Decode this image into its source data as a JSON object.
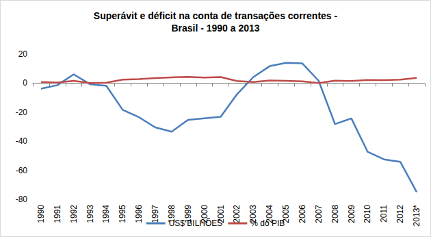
{
  "chart_data": {
    "type": "line",
    "title": "Superávit e déficit na conta de transações correntes -\nBrasil - 1990 a 2013",
    "categories": [
      "1990",
      "1991",
      "1992",
      "1993",
      "1994",
      "1995",
      "1996",
      "1997",
      "1998",
      "1999",
      "2000",
      "2001",
      "2002",
      "2003",
      "2004",
      "2005",
      "2006",
      "2007",
      "2008",
      "2009",
      "2010",
      "2011",
      "2012",
      "2013*"
    ],
    "series": [
      {
        "name": "US$ BILHÕES",
        "color": "#4a7ebb",
        "values": [
          -3.8,
          -1.4,
          6.1,
          -0.7,
          -1.8,
          -18.4,
          -23.5,
          -30.5,
          -33.4,
          -25.3,
          -24.2,
          -23.2,
          -7.6,
          4.2,
          11.7,
          14.0,
          13.6,
          1.6,
          -28.2,
          -24.3,
          -47.3,
          -52.5,
          -54.2,
          -75.0
        ]
      },
      {
        "name": "% do PIB",
        "color": "#be4b48",
        "values": [
          0.8,
          0.4,
          1.6,
          0.1,
          0.3,
          2.4,
          2.8,
          3.5,
          4.0,
          4.3,
          3.8,
          4.2,
          1.5,
          0.8,
          1.8,
          1.6,
          1.3,
          0.1,
          1.7,
          1.5,
          2.2,
          2.1,
          2.4,
          3.6
        ]
      }
    ],
    "ylim": [
      -80,
      20
    ],
    "yticks": [
      -80,
      -60,
      -40,
      -20,
      0,
      20
    ],
    "grid": false,
    "legend": "bottom"
  }
}
